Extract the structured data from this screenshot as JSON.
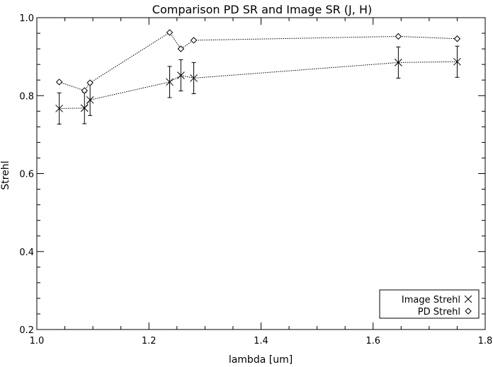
{
  "chart_data": {
    "type": "line",
    "title": "Comparison PD SR and Image SR (J, H)",
    "xlabel": "lambda [um]",
    "ylabel": "Strehl",
    "xlim": [
      1.0,
      1.8
    ],
    "ylim": [
      0.2,
      1.0
    ],
    "xticks": [
      1.0,
      1.2,
      1.4,
      1.6,
      1.8
    ],
    "xtick_labels": [
      "1.0",
      "1.2",
      "1.4",
      "1.6",
      "1.8"
    ],
    "yticks": [
      0.2,
      0.4,
      0.6,
      0.8,
      1.0
    ],
    "ytick_labels": [
      "0.2",
      "0.4",
      "0.6",
      "0.8",
      "1.0"
    ],
    "grid": false,
    "legend_position": "bottom-right",
    "series": [
      {
        "name": "Image Strehl",
        "marker": "x",
        "x": [
          1.04,
          1.085,
          1.095,
          1.237,
          1.257,
          1.28,
          1.645,
          1.75
        ],
        "y": [
          0.767,
          0.768,
          0.789,
          0.835,
          0.852,
          0.845,
          0.885,
          0.887
        ],
        "error": [
          0.04,
          0.04,
          0.04,
          0.04,
          0.04,
          0.04,
          0.04,
          0.04
        ]
      },
      {
        "name": "PD Strehl",
        "marker": "diamond",
        "x": [
          1.04,
          1.085,
          1.095,
          1.237,
          1.257,
          1.28,
          1.645,
          1.75
        ],
        "y": [
          0.835,
          0.813,
          0.833,
          0.962,
          0.92,
          0.942,
          0.952,
          0.946
        ]
      }
    ]
  }
}
